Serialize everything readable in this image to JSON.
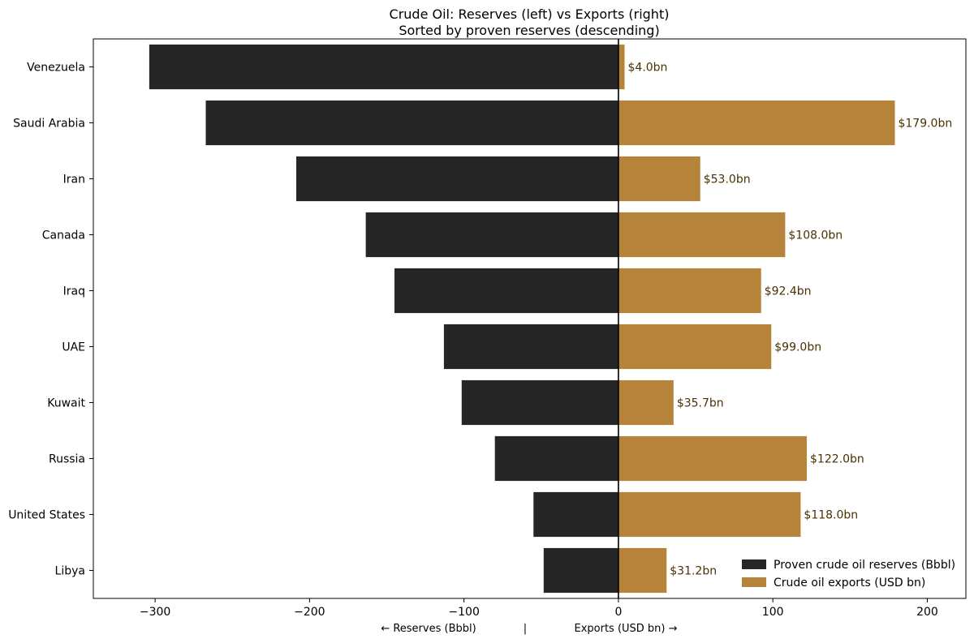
{
  "chart_data": {
    "type": "bar",
    "orientation": "horizontal-diverging",
    "title": "Crude Oil: Reserves (left) vs Exports (right)",
    "subtitle": "Sorted by proven reserves (descending)",
    "xlabel_left": "← Reserves (Bbbl)",
    "xlabel_sep": "|",
    "xlabel_right": "Exports (USD bn) →",
    "xlim": [
      -340,
      225
    ],
    "x_ticks": [
      -300,
      -200,
      -100,
      0,
      100,
      200
    ],
    "x_tick_labels": [
      "−300",
      "−200",
      "−100",
      "0",
      "100",
      "200"
    ],
    "categories": [
      "Venezuela",
      "Saudi Arabia",
      "Iran",
      "Canada",
      "Iraq",
      "UAE",
      "Kuwait",
      "Russia",
      "United States",
      "Libya"
    ],
    "series": [
      {
        "name": "Proven crude oil reserves (Bbbl)",
        "color": "#262626",
        "side": "left",
        "values": [
          303.8,
          267.2,
          208.6,
          163.6,
          145.0,
          113.0,
          101.5,
          80.0,
          55.0,
          48.4
        ]
      },
      {
        "name": "Crude oil exports (USD bn)",
        "color": "#b5833a",
        "side": "right",
        "values": [
          4.0,
          179.0,
          53.0,
          108.0,
          92.4,
          99.0,
          35.7,
          122.0,
          118.0,
          31.2
        ],
        "data_labels": [
          "$4.0bn",
          "$179.0bn",
          "$53.0bn",
          "$108.0bn",
          "$92.4bn",
          "$99.0bn",
          "$35.7bn",
          "$122.0bn",
          "$118.0bn",
          "$31.2bn"
        ]
      }
    ],
    "grid": false,
    "legend_position": "bottom-right"
  }
}
